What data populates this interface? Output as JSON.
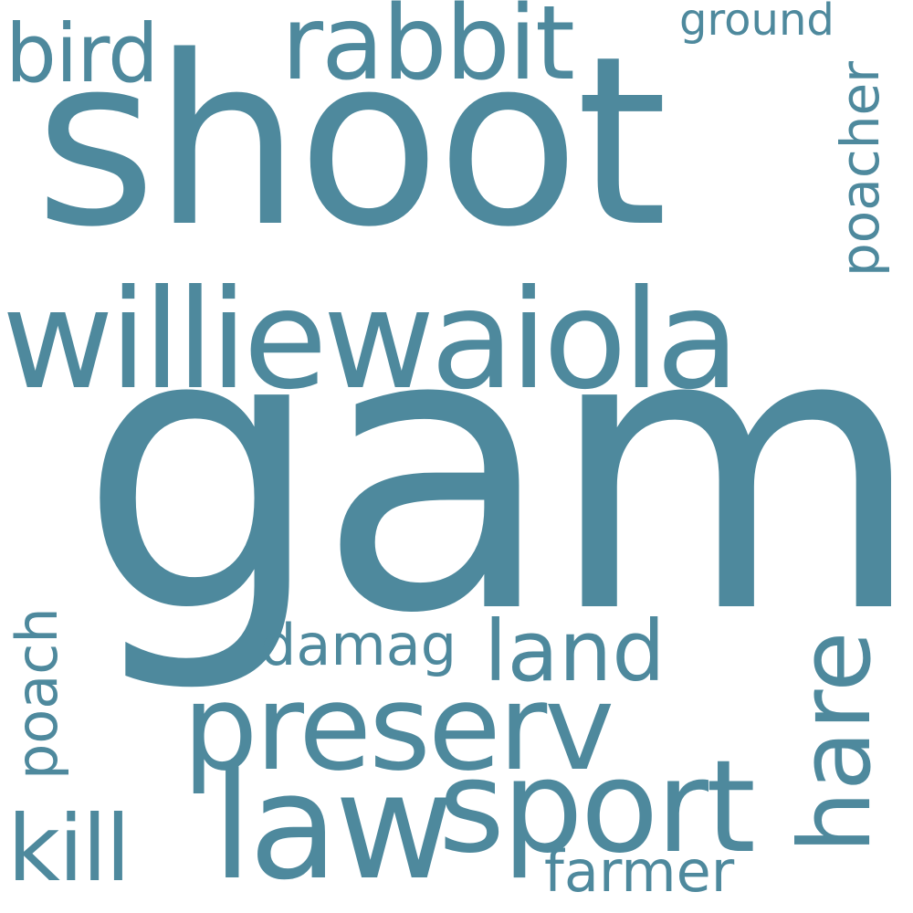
{
  "word_color": "#4E899D",
  "background": "#FFFFFF",
  "words": {
    "shoot": "shoot",
    "game": "game",
    "williewaiola": "williewaiola",
    "rabbit": "rabbit",
    "bird": "bird",
    "ground": "ground",
    "poacher": "poacher",
    "preserv": "preserv",
    "law": "law",
    "sport": "sport",
    "hare": "hare",
    "land": "land",
    "damag": "damag",
    "poach": "poach",
    "kill": "kill",
    "farmer": "farmer"
  }
}
